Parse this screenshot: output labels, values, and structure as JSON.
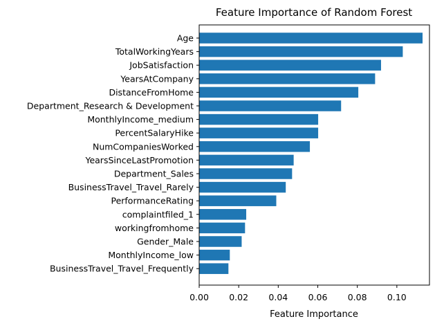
{
  "chart_data": {
    "type": "bar",
    "orientation": "horizontal",
    "title": "Feature Importance of Random Forest",
    "xlabel": "Feature Importance",
    "ylabel": "",
    "xlim": [
      0,
      0.1165
    ],
    "xticks": [
      0.0,
      0.02,
      0.04,
      0.06,
      0.08,
      0.1
    ],
    "xtick_labels": [
      "0.00",
      "0.02",
      "0.04",
      "0.06",
      "0.08",
      "0.10"
    ],
    "grid": false,
    "bar_color": "#1f77b4",
    "categories": [
      "Age",
      "TotalWorkingYears",
      "JobSatisfaction",
      "YearsAtCompany",
      "DistanceFromHome",
      "Department_Research & Development",
      "MonthlyIncome_medium",
      "PercentSalaryHike",
      "NumCompaniesWorked",
      "YearsSinceLastPromotion",
      "Department_Sales",
      "BusinessTravel_Travel_Rarely",
      "PerformanceRating",
      "complaintfiled_1",
      "workingfromhome",
      "Gender_Male",
      "MonthlyIncome_low",
      "BusinessTravel_Travel_Frequently"
    ],
    "values": [
      0.113,
      0.103,
      0.092,
      0.089,
      0.0805,
      0.0718,
      0.0602,
      0.0602,
      0.056,
      0.0478,
      0.047,
      0.0438,
      0.039,
      0.0238,
      0.0232,
      0.0215,
      0.0155,
      0.0148
    ]
  }
}
